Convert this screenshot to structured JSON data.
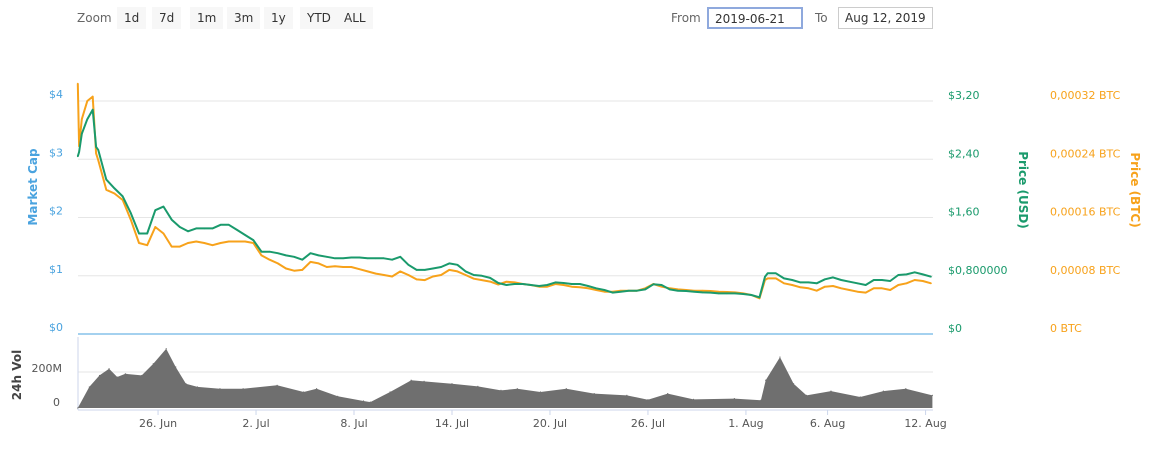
{
  "toolbar": {
    "zoom_label": "Zoom",
    "buttons": [
      "1d",
      "7d",
      "1m",
      "3m",
      "1y",
      "YTD",
      "ALL"
    ],
    "from_label": "From",
    "from_value": "2019-06-21",
    "to_label": "To",
    "to_value": "Aug 12, 2019"
  },
  "colors": {
    "usd": "#1a9a6c",
    "btc": "#f7a21b",
    "market_cap": "#4aa3df",
    "volume": "#6f6f6f",
    "grid": "#e6e6e6"
  },
  "chart_data": {
    "type": "line",
    "x_range": [
      "2019-06-21",
      "2019-08-12"
    ],
    "x_ticks": [
      {
        "date": "2019-06-26",
        "label": "26. Jun"
      },
      {
        "date": "2019-07-02",
        "label": "2. Jul"
      },
      {
        "date": "2019-07-08",
        "label": "8. Jul"
      },
      {
        "date": "2019-07-14",
        "label": "14. Jul"
      },
      {
        "date": "2019-07-20",
        "label": "20. Jul"
      },
      {
        "date": "2019-07-26",
        "label": "26. Jul"
      },
      {
        "date": "2019-08-01",
        "label": "1. Aug"
      },
      {
        "date": "2019-08-06",
        "label": "6. Aug"
      },
      {
        "date": "2019-08-12",
        "label": "12. Aug"
      }
    ],
    "axes": {
      "market_cap": {
        "title": "Market Cap",
        "ticks": [
          "$0",
          "$1",
          "$2",
          "$3",
          "$4"
        ],
        "range": [
          0,
          4
        ]
      },
      "usd": {
        "title": "Price (USD)",
        "ticks": [
          "$0",
          "$0,800000",
          "$1,60",
          "$2,40",
          "$3,20"
        ],
        "range": [
          0,
          3.2
        ]
      },
      "btc": {
        "title": "Price (BTC)",
        "ticks": [
          "0 BTC",
          "0,00008 BTC",
          "0,00016 BTC",
          "0,00024 BTC",
          "0,00032 BTC"
        ],
        "range": [
          0,
          0.00032
        ]
      },
      "volume": {
        "title": "24h Vol",
        "ticks": [
          "0",
          "200M"
        ],
        "range": [
          0,
          200000000
        ]
      }
    },
    "grid": true,
    "price_x": [
      "2019-06-21T02",
      "2019-06-21T04",
      "2019-06-21T08",
      "2019-06-21T16",
      "2019-06-22T00",
      "2019-06-22T05",
      "2019-06-22T08",
      "2019-06-22T20",
      "2019-06-23T08",
      "2019-06-23T20",
      "2019-06-24T08",
      "2019-06-24T20",
      "2019-06-25T08",
      "2019-06-25T20",
      "2019-06-26T08",
      "2019-06-26T20",
      "2019-06-27T08",
      "2019-06-27T20",
      "2019-06-28T08",
      "2019-06-28T20",
      "2019-06-29T08",
      "2019-06-29T20",
      "2019-06-30T08",
      "2019-06-30T20",
      "2019-07-01T08",
      "2019-07-01T20",
      "2019-07-02T08",
      "2019-07-02T20",
      "2019-07-03T08",
      "2019-07-03T20",
      "2019-07-04T08",
      "2019-07-04T20",
      "2019-07-05T08",
      "2019-07-05T20",
      "2019-07-06T08",
      "2019-07-06T20",
      "2019-07-07T08",
      "2019-07-07T20",
      "2019-07-08T08",
      "2019-07-08T20",
      "2019-07-09T08",
      "2019-07-09T20",
      "2019-07-10T08",
      "2019-07-10T20",
      "2019-07-11T08",
      "2019-07-11T20",
      "2019-07-12T08",
      "2019-07-12T20",
      "2019-07-13T08",
      "2019-07-13T20",
      "2019-07-14T08",
      "2019-07-14T20",
      "2019-07-15T08",
      "2019-07-15T20",
      "2019-07-16T08",
      "2019-07-16T20",
      "2019-07-17T08",
      "2019-07-17T20",
      "2019-07-18T08",
      "2019-07-18T20",
      "2019-07-19T08",
      "2019-07-19T20",
      "2019-07-20T08",
      "2019-07-20T20",
      "2019-07-21T08",
      "2019-07-21T20",
      "2019-07-22T08",
      "2019-07-22T20",
      "2019-07-23T08",
      "2019-07-23T20",
      "2019-07-24T08",
      "2019-07-24T20",
      "2019-07-25T08",
      "2019-07-25T20",
      "2019-07-26T08",
      "2019-07-26T20",
      "2019-07-27T08",
      "2019-07-27T20",
      "2019-07-28T08",
      "2019-07-28T20",
      "2019-07-29T08",
      "2019-07-29T20",
      "2019-07-30T08",
      "2019-07-30T20",
      "2019-07-31T08",
      "2019-07-31T20",
      "2019-08-01T08",
      "2019-08-01T20",
      "2019-08-02T04",
      "2019-08-02T08",
      "2019-08-02T20",
      "2019-08-03T08",
      "2019-08-03T20",
      "2019-08-04T08",
      "2019-08-04T20",
      "2019-08-05T08",
      "2019-08-05T20",
      "2019-08-06T08",
      "2019-08-06T20",
      "2019-08-07T08",
      "2019-08-07T20",
      "2019-08-08T08",
      "2019-08-08T20",
      "2019-08-09T08",
      "2019-08-09T20",
      "2019-08-10T08",
      "2019-08-10T20",
      "2019-08-11T08",
      "2019-08-11T20",
      "2019-08-12T08"
    ],
    "series": [
      {
        "name": "Price (USD)",
        "axis": "usd",
        "values": [
          2.44,
          2.5,
          2.75,
          2.95,
          3.08,
          2.57,
          2.53,
          2.12,
          2.0,
          1.89,
          1.66,
          1.38,
          1.38,
          1.7,
          1.75,
          1.57,
          1.47,
          1.41,
          1.45,
          1.45,
          1.45,
          1.5,
          1.5,
          1.43,
          1.36,
          1.29,
          1.13,
          1.13,
          1.11,
          1.08,
          1.06,
          1.02,
          1.11,
          1.08,
          1.06,
          1.04,
          1.04,
          1.05,
          1.05,
          1.04,
          1.04,
          1.04,
          1.02,
          1.06,
          0.95,
          0.88,
          0.88,
          0.9,
          0.92,
          0.97,
          0.95,
          0.86,
          0.81,
          0.8,
          0.77,
          0.7,
          0.673,
          0.687,
          0.687,
          0.673,
          0.659,
          0.673,
          0.709,
          0.7,
          0.687,
          0.687,
          0.659,
          0.627,
          0.604,
          0.568,
          0.581,
          0.595,
          0.595,
          0.613,
          0.682,
          0.673,
          0.613,
          0.595,
          0.591,
          0.581,
          0.572,
          0.568,
          0.558,
          0.558,
          0.558,
          0.549,
          0.536,
          0.504,
          0.787,
          0.833,
          0.833,
          0.764,
          0.742,
          0.709,
          0.709,
          0.696,
          0.751,
          0.778,
          0.742,
          0.718,
          0.696,
          0.673,
          0.742,
          0.742,
          0.728,
          0.81,
          0.819,
          0.847,
          0.819,
          0.787
        ]
      },
      {
        "name": "Price (BTC)",
        "axis": "btc",
        "values": [
          0.000344,
          0.000258,
          0.000295,
          0.00032,
          0.000326,
          0.000248,
          0.000239,
          0.000198,
          0.000193,
          0.000184,
          0.000157,
          0.000125,
          0.000122,
          0.000147,
          0.000138,
          0.00012,
          0.00012,
          0.000125,
          0.000127,
          0.000125,
          0.000122,
          0.000125,
          0.000127,
          0.000127,
          0.000127,
          0.000125,
          0.000108,
          0.000102,
          9.7e-05,
          9e-05,
          8.7e-05,
          8.8e-05,
          9.9e-05,
          9.7e-05,
          9.2e-05,
          9.3e-05,
          9.2e-05,
          9.2e-05,
          8.9e-05,
          8.6e-05,
          8.3e-05,
          8.1e-05,
          7.9e-05,
          8.6e-05,
          8.1e-05,
          7.5e-05,
          7.4e-05,
          7.9e-05,
          8.1e-05,
          8.8e-05,
          8.6e-05,
          8.1e-05,
          7.6e-05,
          7.4e-05,
          7.2e-05,
          6.8e-05,
          7.18e-05,
          7.09e-05,
          6.87e-05,
          6.73e-05,
          6.5e-05,
          6.5e-05,
          6.87e-05,
          6.73e-05,
          6.5e-05,
          6.41e-05,
          6.27e-05,
          6.04e-05,
          5.81e-05,
          5.81e-05,
          5.95e-05,
          5.95e-05,
          5.95e-05,
          6.27e-05,
          6.87e-05,
          6.5e-05,
          6.27e-05,
          6.13e-05,
          6.04e-05,
          5.95e-05,
          5.95e-05,
          5.91e-05,
          5.81e-05,
          5.77e-05,
          5.72e-05,
          5.58e-05,
          5.36e-05,
          4.9e-05,
          7.42e-05,
          7.64e-05,
          7.64e-05,
          6.96e-05,
          6.73e-05,
          6.41e-05,
          6.27e-05,
          5.95e-05,
          6.5e-05,
          6.59e-05,
          6.27e-05,
          6.04e-05,
          5.81e-05,
          5.68e-05,
          6.27e-05,
          6.27e-05,
          6.04e-05,
          6.73e-05,
          6.96e-05,
          7.42e-05,
          7.28e-05,
          6.96e-05
        ]
      }
    ],
    "volume": {
      "name": "24h Vol",
      "x": [
        "2019-06-21T02",
        "2019-06-21T19",
        "2019-06-22T10",
        "2019-06-23T00",
        "2019-06-23T12",
        "2019-06-24T00",
        "2019-06-25T00",
        "2019-06-25T17",
        "2019-06-26T12",
        "2019-06-27T02",
        "2019-06-27T17",
        "2019-06-28T10",
        "2019-06-29T19",
        "2019-07-01T05",
        "2019-07-03T07",
        "2019-07-04T22",
        "2019-07-05T17",
        "2019-07-07T00",
        "2019-07-08T14",
        "2019-07-09T00",
        "2019-07-10T05",
        "2019-07-11T12",
        "2019-07-12T07",
        "2019-07-14T00",
        "2019-07-15T14",
        "2019-07-17T00",
        "2019-07-18T00",
        "2019-07-19T10",
        "2019-07-21T00",
        "2019-07-22T17",
        "2019-07-24T17",
        "2019-07-26T00",
        "2019-07-27T05",
        "2019-07-28T19",
        "2019-07-31T07",
        "2019-08-01T22",
        "2019-08-02T05",
        "2019-08-03T02",
        "2019-08-03T22",
        "2019-08-04T17",
        "2019-08-06T05",
        "2019-08-08T00",
        "2019-08-09T10",
        "2019-08-10T19",
        "2019-08-12T10"
      ],
      "values": [
        0,
        117000000,
        181000000,
        218000000,
        172000000,
        190000000,
        181000000,
        246000000,
        329000000,
        228000000,
        135000000,
        117000000,
        107000000,
        107000000,
        126000000,
        89000000,
        107000000,
        65000000,
        39000000,
        33000000,
        89000000,
        154000000,
        148000000,
        135000000,
        120000000,
        98000000,
        107000000,
        89000000,
        107000000,
        80000000,
        70000000,
        46000000,
        80000000,
        48000000,
        52000000,
        43000000,
        154000000,
        283000000,
        135000000,
        70000000,
        94000000,
        61000000,
        94000000,
        107000000,
        70000000
      ]
    }
  }
}
